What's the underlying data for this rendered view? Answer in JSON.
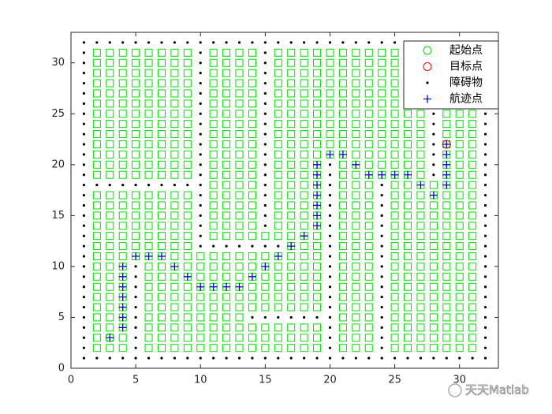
{
  "chart_data": {
    "type": "grid_map",
    "xlim": [
      0,
      33
    ],
    "ylim": [
      0,
      33
    ],
    "xticks": [
      0,
      5,
      10,
      15,
      20,
      25,
      30
    ],
    "yticks": [
      0,
      5,
      10,
      15,
      20,
      25,
      30
    ],
    "grid_x": [
      1,
      2,
      3,
      4,
      5,
      6,
      7,
      8,
      9,
      10,
      11,
      12,
      13,
      14,
      15,
      16,
      17,
      18,
      19,
      20,
      21,
      22,
      23,
      24,
      25,
      26,
      27,
      28,
      29,
      30,
      31,
      32
    ],
    "grid_y": [
      1,
      2,
      3,
      4,
      5,
      6,
      7,
      8,
      9,
      10,
      11,
      12,
      13,
      14,
      15,
      16,
      17,
      18,
      19,
      20,
      21,
      22,
      23,
      24,
      25,
      26,
      27,
      28,
      29,
      30,
      31,
      32
    ],
    "free_color": "#00dd00",
    "obstacle_color": "#000000",
    "map": [
      [
        1,
        1,
        1,
        1,
        1,
        1,
        1,
        1,
        1,
        1,
        1,
        1,
        1,
        1,
        1,
        1,
        1,
        1,
        1,
        1,
        1,
        1,
        1,
        1,
        1,
        1,
        1,
        1,
        1,
        1,
        1,
        1
      ],
      [
        1,
        0,
        0,
        0,
        1,
        0,
        0,
        0,
        0,
        0,
        0,
        0,
        0,
        0,
        0,
        0,
        0,
        0,
        0,
        1,
        0,
        0,
        0,
        1,
        0,
        0,
        0,
        0,
        0,
        0,
        0,
        1
      ],
      [
        1,
        0,
        0,
        0,
        1,
        0,
        0,
        0,
        0,
        0,
        0,
        0,
        0,
        0,
        0,
        0,
        0,
        0,
        0,
        1,
        0,
        0,
        0,
        1,
        0,
        0,
        0,
        0,
        0,
        0,
        0,
        1
      ],
      [
        1,
        0,
        0,
        0,
        1,
        0,
        0,
        0,
        0,
        0,
        0,
        0,
        0,
        0,
        0,
        0,
        0,
        0,
        0,
        1,
        0,
        0,
        0,
        1,
        0,
        0,
        0,
        0,
        0,
        0,
        0,
        1
      ],
      [
        1,
        0,
        0,
        0,
        1,
        0,
        0,
        0,
        0,
        0,
        0,
        0,
        0,
        1,
        1,
        1,
        1,
        1,
        1,
        1,
        0,
        0,
        0,
        1,
        0,
        0,
        0,
        0,
        0,
        0,
        0,
        1
      ],
      [
        1,
        0,
        0,
        0,
        1,
        0,
        0,
        0,
        0,
        0,
        0,
        0,
        0,
        0,
        0,
        0,
        0,
        0,
        0,
        1,
        0,
        0,
        0,
        1,
        0,
        0,
        0,
        0,
        0,
        0,
        0,
        1
      ],
      [
        1,
        0,
        0,
        0,
        1,
        0,
        0,
        0,
        0,
        0,
        0,
        0,
        0,
        0,
        0,
        0,
        0,
        0,
        0,
        1,
        0,
        0,
        0,
        1,
        0,
        0,
        0,
        0,
        0,
        0,
        0,
        1
      ],
      [
        1,
        0,
        0,
        0,
        1,
        0,
        0,
        0,
        0,
        0,
        0,
        0,
        0,
        0,
        0,
        0,
        0,
        0,
        0,
        1,
        0,
        0,
        0,
        1,
        0,
        0,
        0,
        0,
        0,
        0,
        0,
        1
      ],
      [
        1,
        0,
        0,
        0,
        1,
        0,
        0,
        0,
        0,
        0,
        0,
        0,
        0,
        0,
        0,
        0,
        0,
        0,
        0,
        1,
        0,
        0,
        0,
        1,
        0,
        0,
        0,
        0,
        0,
        0,
        0,
        1
      ],
      [
        1,
        0,
        0,
        0,
        1,
        0,
        0,
        0,
        0,
        0,
        0,
        0,
        0,
        0,
        0,
        0,
        0,
        0,
        0,
        1,
        0,
        0,
        0,
        1,
        0,
        0,
        0,
        0,
        0,
        0,
        0,
        1
      ],
      [
        1,
        0,
        0,
        0,
        0,
        0,
        0,
        0,
        0,
        0,
        0,
        0,
        0,
        0,
        0,
        0,
        0,
        0,
        0,
        1,
        0,
        0,
        0,
        1,
        0,
        0,
        0,
        0,
        0,
        0,
        0,
        1
      ],
      [
        1,
        0,
        0,
        0,
        0,
        0,
        0,
        0,
        0,
        1,
        1,
        1,
        1,
        1,
        1,
        1,
        0,
        0,
        0,
        1,
        0,
        0,
        0,
        1,
        0,
        0,
        0,
        0,
        0,
        0,
        0,
        1
      ],
      [
        1,
        0,
        0,
        0,
        0,
        0,
        0,
        0,
        0,
        1,
        0,
        0,
        0,
        0,
        0,
        0,
        0,
        0,
        0,
        1,
        0,
        0,
        0,
        1,
        0,
        0,
        0,
        0,
        0,
        0,
        0,
        1
      ],
      [
        1,
        0,
        0,
        0,
        0,
        0,
        0,
        0,
        0,
        1,
        0,
        0,
        0,
        0,
        1,
        0,
        0,
        0,
        0,
        1,
        0,
        0,
        0,
        1,
        0,
        0,
        0,
        0,
        0,
        0,
        0,
        1
      ],
      [
        1,
        0,
        0,
        0,
        0,
        0,
        0,
        0,
        0,
        1,
        0,
        0,
        0,
        0,
        1,
        0,
        0,
        0,
        0,
        1,
        0,
        0,
        0,
        1,
        0,
        0,
        0,
        0,
        0,
        0,
        0,
        1
      ],
      [
        1,
        0,
        0,
        0,
        0,
        0,
        0,
        0,
        0,
        1,
        0,
        0,
        0,
        0,
        1,
        0,
        0,
        0,
        0,
        1,
        0,
        0,
        0,
        1,
        0,
        0,
        0,
        0,
        0,
        0,
        0,
        1
      ],
      [
        1,
        0,
        0,
        0,
        0,
        0,
        0,
        0,
        0,
        1,
        0,
        0,
        0,
        0,
        1,
        0,
        0,
        0,
        0,
        1,
        0,
        0,
        0,
        1,
        0,
        0,
        0,
        0,
        0,
        0,
        0,
        1
      ],
      [
        1,
        1,
        1,
        1,
        1,
        1,
        1,
        1,
        1,
        1,
        0,
        0,
        0,
        0,
        1,
        0,
        0,
        0,
        0,
        1,
        0,
        0,
        0,
        1,
        0,
        0,
        0,
        0,
        0,
        0,
        0,
        1
      ],
      [
        1,
        0,
        0,
        0,
        0,
        0,
        0,
        0,
        0,
        1,
        0,
        0,
        0,
        0,
        1,
        0,
        0,
        0,
        0,
        1,
        0,
        0,
        0,
        0,
        0,
        0,
        0,
        1,
        0,
        0,
        0,
        1
      ],
      [
        1,
        0,
        0,
        0,
        0,
        0,
        0,
        0,
        0,
        1,
        0,
        0,
        0,
        0,
        1,
        0,
        0,
        0,
        0,
        1,
        0,
        0,
        0,
        0,
        0,
        0,
        0,
        1,
        0,
        0,
        0,
        1
      ],
      [
        1,
        0,
        0,
        0,
        0,
        0,
        0,
        0,
        0,
        1,
        0,
        0,
        0,
        0,
        1,
        0,
        0,
        0,
        0,
        0,
        0,
        0,
        0,
        0,
        0,
        0,
        0,
        1,
        0,
        0,
        0,
        1
      ],
      [
        1,
        0,
        0,
        0,
        0,
        0,
        0,
        0,
        0,
        1,
        0,
        0,
        0,
        0,
        1,
        0,
        0,
        0,
        0,
        0,
        0,
        0,
        0,
        0,
        0,
        0,
        0,
        1,
        0,
        0,
        0,
        1
      ],
      [
        1,
        0,
        0,
        0,
        0,
        0,
        0,
        0,
        0,
        1,
        0,
        0,
        0,
        0,
        1,
        0,
        0,
        0,
        0,
        0,
        0,
        0,
        0,
        0,
        0,
        0,
        0,
        1,
        0,
        0,
        0,
        1
      ],
      [
        1,
        0,
        0,
        0,
        0,
        0,
        0,
        0,
        0,
        1,
        0,
        0,
        0,
        0,
        1,
        0,
        0,
        0,
        0,
        0,
        0,
        0,
        0,
        0,
        0,
        0,
        0,
        1,
        0,
        0,
        0,
        1
      ],
      [
        1,
        0,
        0,
        0,
        0,
        0,
        0,
        0,
        0,
        1,
        0,
        0,
        0,
        0,
        1,
        0,
        0,
        0,
        0,
        0,
        0,
        0,
        0,
        0,
        0,
        0,
        0,
        1,
        0,
        0,
        0,
        1
      ],
      [
        1,
        0,
        0,
        0,
        0,
        0,
        0,
        0,
        0,
        1,
        0,
        0,
        0,
        0,
        1,
        0,
        0,
        0,
        0,
        0,
        0,
        0,
        0,
        0,
        0,
        0,
        0,
        1,
        0,
        0,
        0,
        1
      ],
      [
        1,
        0,
        0,
        0,
        0,
        0,
        0,
        0,
        0,
        1,
        0,
        0,
        0,
        0,
        1,
        0,
        0,
        0,
        0,
        0,
        0,
        0,
        0,
        0,
        0,
        0,
        0,
        1,
        0,
        0,
        0,
        1
      ],
      [
        1,
        0,
        0,
        0,
        0,
        0,
        0,
        0,
        0,
        1,
        0,
        0,
        0,
        0,
        1,
        0,
        0,
        0,
        0,
        0,
        0,
        0,
        0,
        0,
        0,
        0,
        0,
        1,
        0,
        0,
        0,
        1
      ],
      [
        1,
        0,
        0,
        0,
        0,
        0,
        0,
        0,
        0,
        1,
        0,
        0,
        0,
        0,
        1,
        0,
        0,
        0,
        0,
        0,
        0,
        0,
        0,
        0,
        0,
        0,
        0,
        1,
        0,
        0,
        0,
        1
      ],
      [
        1,
        0,
        0,
        0,
        0,
        0,
        0,
        0,
        0,
        1,
        0,
        0,
        0,
        0,
        1,
        0,
        0,
        0,
        0,
        0,
        0,
        0,
        0,
        0,
        0,
        0,
        0,
        1,
        0,
        0,
        0,
        1
      ],
      [
        1,
        0,
        0,
        0,
        0,
        0,
        0,
        0,
        0,
        1,
        0,
        0,
        0,
        0,
        1,
        0,
        0,
        0,
        0,
        0,
        0,
        0,
        0,
        0,
        0,
        0,
        0,
        1,
        0,
        0,
        0,
        1
      ],
      [
        1,
        1,
        1,
        1,
        1,
        1,
        1,
        1,
        1,
        1,
        1,
        1,
        1,
        1,
        1,
        1,
        1,
        1,
        1,
        1,
        1,
        1,
        1,
        1,
        1,
        1,
        1,
        1,
        1,
        1,
        1,
        1
      ]
    ],
    "series": [
      {
        "name": "起始点",
        "marker": "o",
        "color": "#00dd00",
        "x": [
          3
        ],
        "y": [
          3
        ]
      },
      {
        "name": "目标点",
        "marker": "o",
        "color": "#ff0000",
        "x": [
          29
        ],
        "y": [
          22
        ]
      },
      {
        "name": "障碍物",
        "marker": ".",
        "color": "#000000"
      },
      {
        "name": "航迹点",
        "marker": "+",
        "color": "#0000cc",
        "x": [
          3,
          4,
          4,
          4,
          4,
          4,
          4,
          4,
          5,
          6,
          7,
          8,
          9,
          10,
          11,
          12,
          13,
          14,
          15,
          16,
          17,
          18,
          19,
          19,
          19,
          19,
          19,
          19,
          19,
          20,
          21,
          22,
          23,
          24,
          25,
          26,
          27,
          28,
          29,
          29,
          29,
          29,
          29
        ],
        "y": [
          3,
          4,
          5,
          6,
          7,
          8,
          9,
          10,
          11,
          11,
          11,
          10,
          9,
          8,
          8,
          8,
          8,
          9,
          10,
          11,
          12,
          13,
          14,
          15,
          16,
          17,
          18,
          19,
          20,
          21,
          21,
          20,
          19,
          19,
          19,
          19,
          18,
          17,
          18,
          19,
          20,
          21,
          22
        ]
      }
    ],
    "legend": "upper right",
    "watermark": "天天Matlab"
  }
}
